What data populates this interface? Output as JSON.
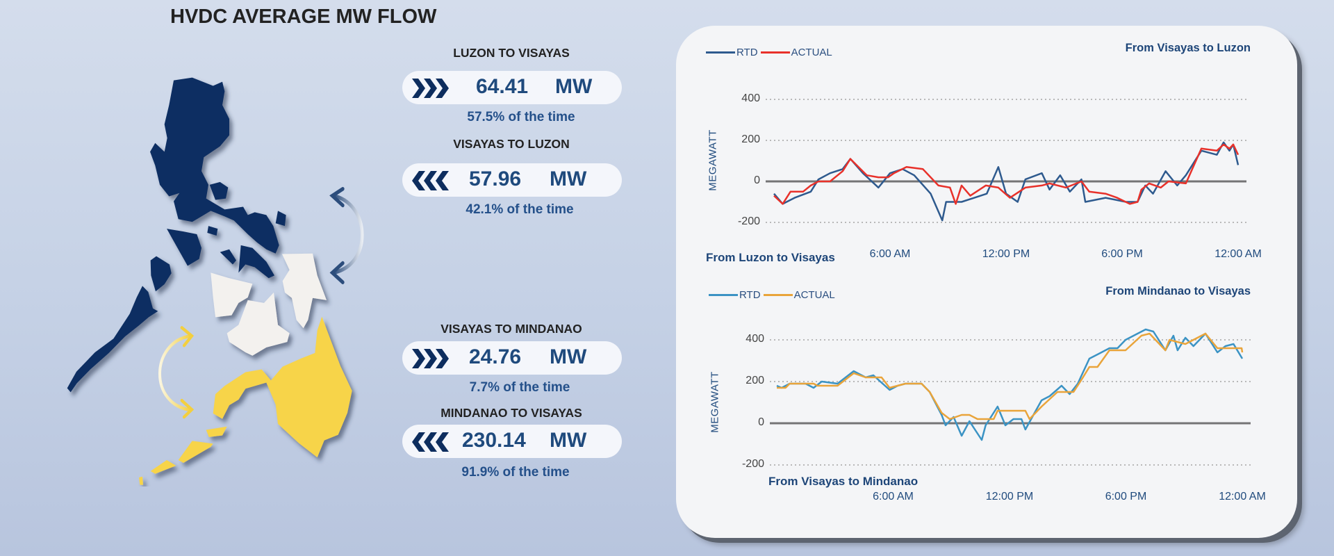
{
  "header": {
    "title": "HVDC AVERAGE MW FLOW"
  },
  "flows": [
    {
      "label": "LUZON TO VISAYAS",
      "value": "64.41",
      "unit": "MW",
      "direction": "right",
      "percent": "57.5%",
      "suffix": "of the time"
    },
    {
      "label": "VISAYAS TO LUZON",
      "value": "57.96",
      "unit": "MW",
      "direction": "left",
      "percent": "42.1%",
      "suffix": "of the time"
    },
    {
      "label": "VISAYAS TO MINDANAO",
      "value": "24.76",
      "unit": "MW",
      "direction": "right",
      "percent": "7.7%",
      "suffix": "of the time"
    },
    {
      "label": "MINDANAO TO VISAYAS",
      "value": "230.14",
      "unit": "MW",
      "direction": "left",
      "percent": "91.9%",
      "suffix": "of the time"
    }
  ],
  "colors": {
    "luzon": "#0e2f62",
    "visayas": "#f3f1ee",
    "mindanao": "#f7d44a",
    "pill_text": "#1f4a7d"
  },
  "chart_data": [
    {
      "type": "line",
      "title": "From Visayas to Luzon",
      "negative_label": "From Luzon to Visayas",
      "ylabel": "MEGAWATT",
      "ylim": [
        -200,
        400
      ],
      "yticks": [
        "400",
        "200",
        "0",
        "-200"
      ],
      "ytick_values": [
        400,
        200,
        0,
        -200
      ],
      "xlim": [
        "00:00",
        "24:00"
      ],
      "xticks": [
        "6:00 AM",
        "12:00 PM",
        "6:00 PM",
        "12:00 AM"
      ],
      "xtick_values": [
        "06:00",
        "12:00",
        "18:00",
        "24:00"
      ],
      "grid": "horizontal dotted",
      "legend": "top-left",
      "series": [
        {
          "name": "RTD",
          "color": "#2e5a8e",
          "points": [
            [
              "00:00",
              -60
            ],
            [
              "00:27",
              -110
            ],
            [
              "01:04",
              -80
            ],
            [
              "01:54",
              -50
            ],
            [
              "02:18",
              10
            ],
            [
              "02:54",
              40
            ],
            [
              "03:33",
              60
            ],
            [
              "03:57",
              110
            ],
            [
              "04:36",
              40
            ],
            [
              "05:24",
              -30
            ],
            [
              "06:00",
              40
            ],
            [
              "06:39",
              60
            ],
            [
              "07:15",
              30
            ],
            [
              "08:06",
              -60
            ],
            [
              "08:42",
              -190
            ],
            [
              "08:54",
              -100
            ],
            [
              "09:42",
              -100
            ],
            [
              "11:00",
              -60
            ],
            [
              "11:36",
              70
            ],
            [
              "12:00",
              -60
            ],
            [
              "12:36",
              -100
            ],
            [
              "13:00",
              10
            ],
            [
              "13:51",
              40
            ],
            [
              "14:15",
              -40
            ],
            [
              "14:48",
              30
            ],
            [
              "15:18",
              -50
            ],
            [
              "15:54",
              10
            ],
            [
              "16:06",
              -100
            ],
            [
              "17:09",
              -80
            ],
            [
              "18:12",
              -100
            ],
            [
              "18:48",
              -100
            ],
            [
              "19:12",
              -20
            ],
            [
              "19:36",
              -60
            ],
            [
              "20:15",
              50
            ],
            [
              "20:51",
              -20
            ],
            [
              "21:18",
              30
            ],
            [
              "22:06",
              150
            ],
            [
              "22:54",
              130
            ],
            [
              "23:15",
              190
            ],
            [
              "23:33",
              150
            ],
            [
              "23:45",
              180
            ],
            [
              "24:00",
              80
            ]
          ]
        },
        {
          "name": "ACTUAL",
          "color": "#e8312a",
          "points": [
            [
              "00:00",
              -70
            ],
            [
              "00:27",
              -110
            ],
            [
              "00:51",
              -50
            ],
            [
              "01:30",
              -50
            ],
            [
              "01:54",
              -20
            ],
            [
              "02:18",
              0
            ],
            [
              "02:54",
              0
            ],
            [
              "03:33",
              50
            ],
            [
              "03:57",
              110
            ],
            [
              "04:48",
              30
            ],
            [
              "05:24",
              20
            ],
            [
              "05:54",
              20
            ],
            [
              "06:12",
              40
            ],
            [
              "06:51",
              70
            ],
            [
              "07:42",
              60
            ],
            [
              "08:30",
              -20
            ],
            [
              "09:06",
              -30
            ],
            [
              "09:24",
              -110
            ],
            [
              "09:42",
              -20
            ],
            [
              "10:09",
              -70
            ],
            [
              "10:57",
              -20
            ],
            [
              "11:36",
              -30
            ],
            [
              "12:12",
              -80
            ],
            [
              "13:00",
              -30
            ],
            [
              "13:51",
              -20
            ],
            [
              "14:15",
              -10
            ],
            [
              "15:06",
              -30
            ],
            [
              "15:54",
              0
            ],
            [
              "16:18",
              -50
            ],
            [
              "17:09",
              -60
            ],
            [
              "17:45",
              -80
            ],
            [
              "18:24",
              -110
            ],
            [
              "18:48",
              -100
            ],
            [
              "19:00",
              -40
            ],
            [
              "19:24",
              -10
            ],
            [
              "20:00",
              -30
            ],
            [
              "20:24",
              0
            ],
            [
              "21:18",
              -10
            ],
            [
              "22:06",
              160
            ],
            [
              "22:54",
              150
            ],
            [
              "23:15",
              180
            ],
            [
              "23:33",
              160
            ],
            [
              "23:45",
              180
            ],
            [
              "24:00",
              130
            ]
          ]
        }
      ]
    },
    {
      "type": "line",
      "title": "From Mindanao to Visayas",
      "negative_label": "From Visayas to Mindanao",
      "ylabel": "MEGAWATT",
      "ylim": [
        -200,
        400
      ],
      "yticks": [
        "400",
        "200",
        "0",
        "-200"
      ],
      "ytick_values": [
        400,
        200,
        0,
        -200
      ],
      "xlim": [
        "00:00",
        "24:00"
      ],
      "xticks": [
        "6:00 AM",
        "12:00 PM",
        "6:00 PM",
        "12:00 AM"
      ],
      "xtick_values": [
        "06:00",
        "12:00",
        "18:00",
        "24:00"
      ],
      "grid": "horizontal dotted",
      "legend": "top-left",
      "series": [
        {
          "name": "RTD",
          "color": "#3b93c4",
          "points": [
            [
              "00:00",
              180
            ],
            [
              "00:15",
              170
            ],
            [
              "00:40",
              190
            ],
            [
              "01:29",
              190
            ],
            [
              "01:54",
              170
            ],
            [
              "02:19",
              200
            ],
            [
              "03:08",
              190
            ],
            [
              "03:58",
              250
            ],
            [
              "04:35",
              220
            ],
            [
              "04:59",
              230
            ],
            [
              "05:49",
              160
            ],
            [
              "06:14",
              180
            ],
            [
              "06:38",
              190
            ],
            [
              "07:28",
              190
            ],
            [
              "07:53",
              150
            ],
            [
              "08:30",
              40
            ],
            [
              "08:42",
              -10
            ],
            [
              "09:07",
              30
            ],
            [
              "09:32",
              -60
            ],
            [
              "09:56",
              10
            ],
            [
              "10:34",
              -80
            ],
            [
              "10:46",
              -10
            ],
            [
              "11:23",
              80
            ],
            [
              "11:47",
              -10
            ],
            [
              "12:12",
              20
            ],
            [
              "12:37",
              20
            ],
            [
              "12:49",
              -30
            ],
            [
              "13:14",
              40
            ],
            [
              "13:39",
              110
            ],
            [
              "14:04",
              130
            ],
            [
              "14:41",
              180
            ],
            [
              "15:06",
              140
            ],
            [
              "15:31",
              190
            ],
            [
              "16:07",
              310
            ],
            [
              "16:32",
              330
            ],
            [
              "17:09",
              360
            ],
            [
              "17:34",
              360
            ],
            [
              "17:59",
              400
            ],
            [
              "18:36",
              430
            ],
            [
              "19:01",
              450
            ],
            [
              "19:25",
              440
            ],
            [
              "20:02",
              350
            ],
            [
              "20:27",
              420
            ],
            [
              "20:40",
              350
            ],
            [
              "21:04",
              410
            ],
            [
              "21:29",
              370
            ],
            [
              "22:06",
              430
            ],
            [
              "22:43",
              340
            ],
            [
              "23:08",
              370
            ],
            [
              "23:33",
              380
            ],
            [
              "24:00",
              310
            ]
          ]
        },
        {
          "name": "ACTUAL",
          "color": "#e9a43a",
          "points": [
            [
              "00:00",
              170
            ],
            [
              "00:27",
              170
            ],
            [
              "00:40",
              190
            ],
            [
              "01:54",
              190
            ],
            [
              "02:06",
              180
            ],
            [
              "03:08",
              180
            ],
            [
              "03:58",
              240
            ],
            [
              "04:35",
              220
            ],
            [
              "05:24",
              220
            ],
            [
              "05:49",
              170
            ],
            [
              "06:38",
              190
            ],
            [
              "07:28",
              190
            ],
            [
              "07:53",
              150
            ],
            [
              "08:30",
              50
            ],
            [
              "08:55",
              20
            ],
            [
              "09:32",
              40
            ],
            [
              "09:56",
              40
            ],
            [
              "10:21",
              20
            ],
            [
              "11:11",
              20
            ],
            [
              "11:23",
              60
            ],
            [
              "12:49",
              60
            ],
            [
              "13:02",
              20
            ],
            [
              "13:39",
              80
            ],
            [
              "14:28",
              150
            ],
            [
              "15:18",
              150
            ],
            [
              "15:43",
              210
            ],
            [
              "16:07",
              270
            ],
            [
              "16:32",
              270
            ],
            [
              "17:09",
              350
            ],
            [
              "17:59",
              350
            ],
            [
              "18:48",
              420
            ],
            [
              "19:13",
              430
            ],
            [
              "20:02",
              350
            ],
            [
              "20:15",
              400
            ],
            [
              "21:04",
              380
            ],
            [
              "22:06",
              430
            ],
            [
              "22:43",
              360
            ],
            [
              "23:58",
              360
            ],
            [
              "24:00",
              340
            ]
          ]
        }
      ]
    }
  ]
}
